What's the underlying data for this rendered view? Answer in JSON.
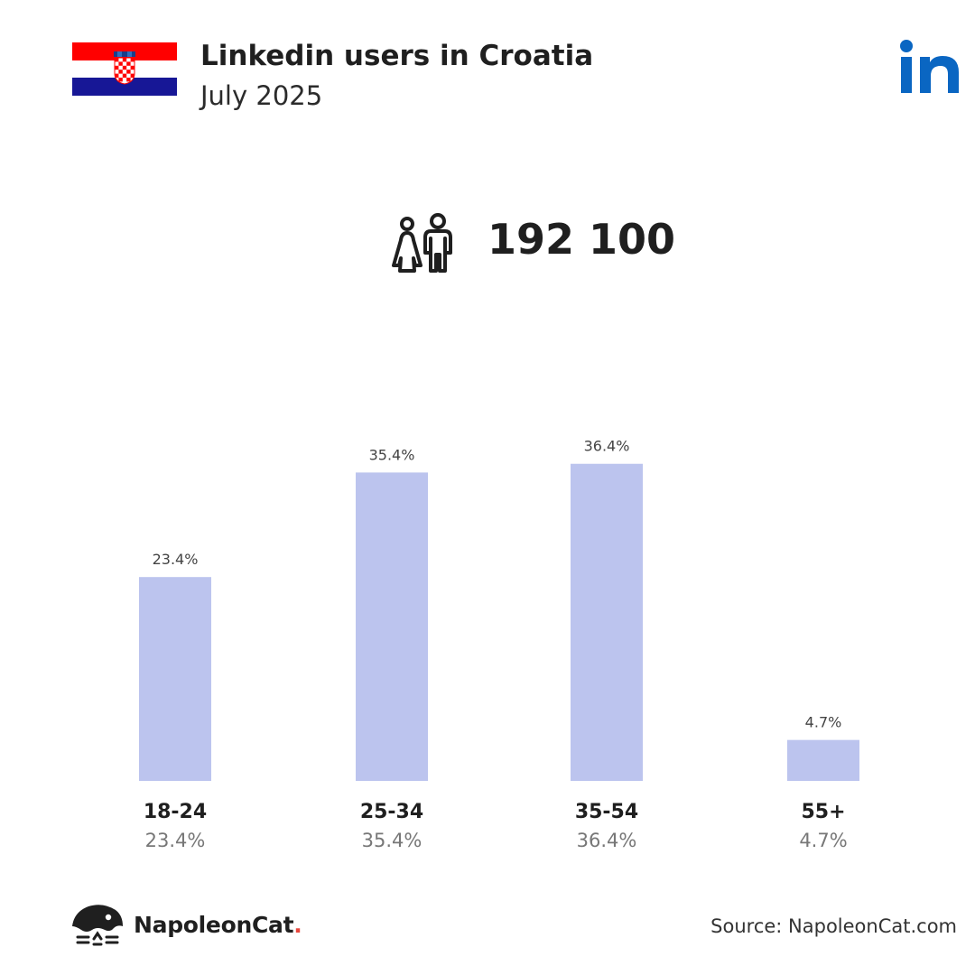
{
  "header": {
    "title": "Linkedin users in Croatia",
    "subtitle": "July 2025"
  },
  "total": {
    "value": "192 100",
    "icon": "users-icon"
  },
  "colors": {
    "bar": "#bcc4ee",
    "brand_accent": "#e8463c",
    "linkedin": "#0a66c2"
  },
  "chart_data": {
    "type": "bar",
    "categories": [
      "18-24",
      "25-34",
      "35-54",
      "55+"
    ],
    "values": [
      23.4,
      35.4,
      36.4,
      4.7
    ],
    "data_labels": [
      "23.4%",
      "35.4%",
      "36.4%",
      "4.7%"
    ],
    "category_sublabels": [
      "23.4%",
      "35.4%",
      "36.4%",
      "4.7%"
    ],
    "grid": false,
    "legend": "none"
  },
  "footer": {
    "brand": "NapoleonCat",
    "brand_dot": ".",
    "source": "Source: NapoleonCat.com"
  }
}
